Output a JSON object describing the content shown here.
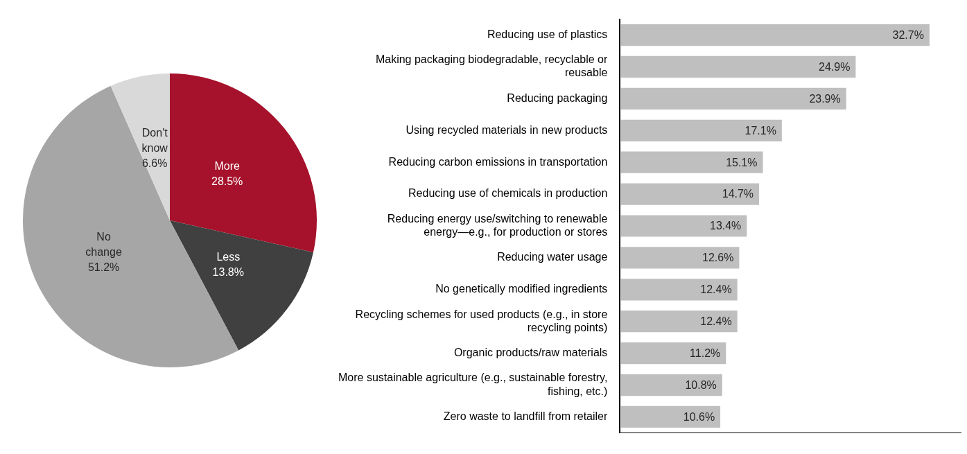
{
  "chart_data": [
    {
      "type": "pie",
      "categories": [
        "More",
        "Less",
        "No change",
        "Don't know"
      ],
      "values": [
        28.5,
        13.8,
        51.2,
        6.6
      ],
      "value_labels": [
        "28.5%",
        "13.8%",
        "51.2%",
        "6.6%"
      ],
      "colors": [
        "#a6112b",
        "#404040",
        "#a6a6a6",
        "#d9d9d9"
      ],
      "data_labels": true
    },
    {
      "type": "bar",
      "orientation": "horizontal",
      "categories": [
        "Reducing use of plastics",
        "Making packaging biodegradable, recyclable or reusable",
        "Reducing packaging",
        "Using recycled materials in new products",
        "Reducing carbon emissions in transportation",
        "Reducing use of chemicals in production",
        "Reducing energy use/switching to renewable energy—e.g., for production or stores",
        "Reducing water usage",
        "No genetically modified ingredients",
        "Recycling schemes for used products (e.g., in store recycling points)",
        "Organic products/raw materials",
        "More sustainable agriculture (e.g., sustainable forestry, fishing, etc.)",
        "Zero waste to landfill from retailer"
      ],
      "values": [
        32.7,
        24.9,
        23.9,
        17.1,
        15.1,
        14.7,
        13.4,
        12.6,
        12.4,
        12.4,
        11.2,
        10.8,
        10.6
      ],
      "value_labels": [
        "32.7%",
        "24.9%",
        "23.9%",
        "17.1%",
        "15.1%",
        "14.7%",
        "13.4%",
        "12.6%",
        "12.4%",
        "12.4%",
        "11.2%",
        "10.8%",
        "10.6%"
      ],
      "color": "#bfbfbf",
      "data_labels": true,
      "xlim": [
        0,
        36
      ],
      "tick_labels": false,
      "grid": false
    }
  ]
}
